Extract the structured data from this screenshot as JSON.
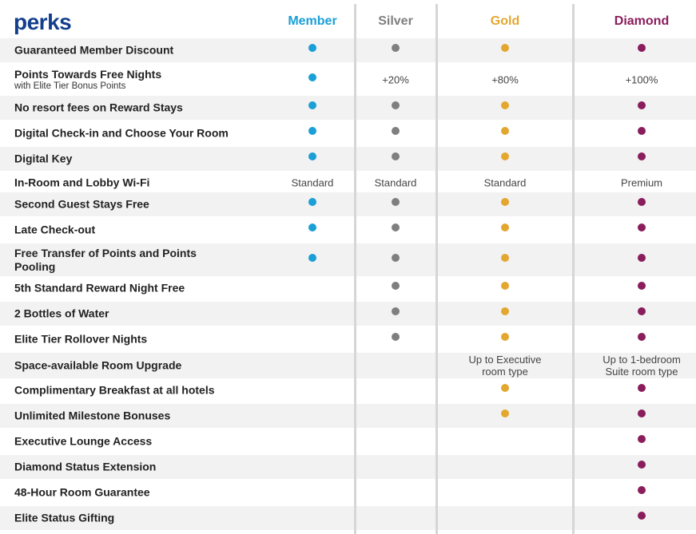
{
  "header": {
    "title": "perks",
    "tiers": [
      {
        "key": "member",
        "label": "Member",
        "color": "#1a9fd6"
      },
      {
        "key": "silver",
        "label": "Silver",
        "color": "#7f7f7f"
      },
      {
        "key": "gold",
        "label": "Gold",
        "color": "#e3a72f"
      },
      {
        "key": "diamond",
        "label": "Diamond",
        "color": "#8a1d5c"
      }
    ]
  },
  "rows": [
    {
      "label": "Guaranteed Member Discount",
      "sublabel": "",
      "cells": {
        "member": "dot",
        "silver": "dot",
        "gold": "dot",
        "diamond": "dot"
      }
    },
    {
      "label": "Points Towards Free Nights",
      "sublabel": "with Elite Tier Bonus Points",
      "cells": {
        "member": "dot",
        "silver": "+20%",
        "gold": "+80%",
        "diamond": "+100%"
      }
    },
    {
      "label": "No resort fees on Reward Stays",
      "sublabel": "",
      "cells": {
        "member": "dot",
        "silver": "dot",
        "gold": "dot",
        "diamond": "dot"
      }
    },
    {
      "label": "Digital Check-in and Choose Your Room",
      "sublabel": "",
      "cells": {
        "member": "dot",
        "silver": "dot",
        "gold": "dot",
        "diamond": "dot"
      }
    },
    {
      "label": "Digital Key",
      "sublabel": "",
      "cells": {
        "member": "dot",
        "silver": "dot",
        "gold": "dot",
        "diamond": "dot"
      }
    },
    {
      "label": "In-Room and Lobby Wi-Fi",
      "sublabel": "",
      "cells": {
        "member": "Standard",
        "silver": "Standard",
        "gold": "Standard",
        "diamond": "Premium"
      }
    },
    {
      "label": "Second Guest Stays Free",
      "sublabel": "",
      "cells": {
        "member": "dot",
        "silver": "dot",
        "gold": "dot",
        "diamond": "dot"
      }
    },
    {
      "label": "Late Check-out",
      "sublabel": "",
      "cells": {
        "member": "dot",
        "silver": "dot",
        "gold": "dot",
        "diamond": "dot"
      }
    },
    {
      "label": "Free Transfer of Points and Points Pooling",
      "sublabel": "",
      "cells": {
        "member": "dot",
        "silver": "dot",
        "gold": "dot",
        "diamond": "dot"
      }
    },
    {
      "label": "5th Standard Reward Night Free",
      "sublabel": "",
      "cells": {
        "member": "",
        "silver": "dot",
        "gold": "dot",
        "diamond": "dot"
      }
    },
    {
      "label": "2 Bottles of Water",
      "sublabel": "",
      "cells": {
        "member": "",
        "silver": "dot",
        "gold": "dot",
        "diamond": "dot"
      }
    },
    {
      "label": "Elite Tier Rollover Nights",
      "sublabel": "",
      "cells": {
        "member": "",
        "silver": "dot",
        "gold": "dot",
        "diamond": "dot"
      }
    },
    {
      "label": "Space-available Room Upgrade",
      "sublabel": "",
      "cells": {
        "member": "",
        "silver": "",
        "gold": "Up to Executive\nroom type",
        "diamond": "Up to 1-bedroom\nSuite room type"
      }
    },
    {
      "label": "Complimentary Breakfast at all hotels",
      "sublabel": "",
      "cells": {
        "member": "",
        "silver": "",
        "gold": "dot",
        "diamond": "dot"
      }
    },
    {
      "label": "Unlimited Milestone Bonuses",
      "sublabel": "",
      "cells": {
        "member": "",
        "silver": "",
        "gold": "dot",
        "diamond": "dot"
      }
    },
    {
      "label": "Executive Lounge Access",
      "sublabel": "",
      "cells": {
        "member": "",
        "silver": "",
        "gold": "",
        "diamond": "dot"
      }
    },
    {
      "label": "Diamond Status Extension",
      "sublabel": "",
      "cells": {
        "member": "",
        "silver": "",
        "gold": "",
        "diamond": "dot"
      }
    },
    {
      "label": "48-Hour Room Guarantee",
      "sublabel": "",
      "cells": {
        "member": "",
        "silver": "",
        "gold": "",
        "diamond": "dot"
      }
    },
    {
      "label": "Elite Status Gifting",
      "sublabel": "",
      "cells": {
        "member": "",
        "silver": "",
        "gold": "",
        "diamond": "dot"
      }
    }
  ]
}
